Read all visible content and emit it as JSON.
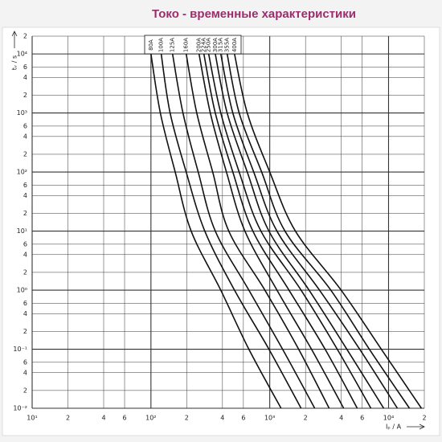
{
  "chart_data": {
    "type": "line",
    "title": "Токо - временные характеристики",
    "xlabel": "Iₚ / A",
    "ylabel": "tᵥ / s",
    "xscale": "log",
    "yscale": "log",
    "grid": true,
    "xlim": [
      10,
      20000
    ],
    "ylim": [
      0.01,
      20000
    ],
    "xticks": [
      {
        "value": 10,
        "label": "10¹"
      },
      {
        "value": 20,
        "label": "2"
      },
      {
        "value": 40,
        "label": "4"
      },
      {
        "value": 60,
        "label": "6"
      },
      {
        "value": 100,
        "label": "10²"
      },
      {
        "value": 200,
        "label": "2"
      },
      {
        "value": 400,
        "label": "4"
      },
      {
        "value": 600,
        "label": "6"
      },
      {
        "value": 1000,
        "label": "10³"
      },
      {
        "value": 2000,
        "label": "2"
      },
      {
        "value": 4000,
        "label": "4"
      },
      {
        "value": 6000,
        "label": "6"
      },
      {
        "value": 10000,
        "label": "10⁴"
      },
      {
        "value": 20000,
        "label": "2"
      }
    ],
    "yticks": [
      {
        "value": 0.01,
        "label": "10⁻²"
      },
      {
        "value": 0.02,
        "label": "2"
      },
      {
        "value": 0.04,
        "label": "4"
      },
      {
        "value": 0.06,
        "label": "6"
      },
      {
        "value": 0.1,
        "label": "10⁻¹"
      },
      {
        "value": 0.2,
        "label": "2"
      },
      {
        "value": 0.4,
        "label": "4"
      },
      {
        "value": 0.6,
        "label": "6"
      },
      {
        "value": 1,
        "label": "10⁰"
      },
      2,
      4,
      6,
      {
        "value": 10,
        "label": "10¹"
      },
      {
        "value": 20,
        "label": "2"
      },
      {
        "value": 40,
        "label": "4"
      },
      {
        "value": 60,
        "label": "6"
      },
      {
        "value": 100,
        "label": "10²"
      },
      {
        "value": 200,
        "label": "2"
      },
      {
        "value": 400,
        "label": "4"
      },
      {
        "value": 600,
        "label": "6"
      },
      {
        "value": 1000,
        "label": "10³"
      },
      {
        "value": 2000,
        "label": "2"
      },
      {
        "value": 4000,
        "label": "4"
      },
      {
        "value": 6000,
        "label": "6"
      },
      {
        "value": 10000,
        "label": "10⁴"
      },
      {
        "value": 20000,
        "label": "2"
      }
    ],
    "series": [
      {
        "name": "80A",
        "color": "#111111",
        "x": [
          100,
          120,
          160,
          218,
          387,
          667,
          1245
        ],
        "values": [
          10000,
          1000,
          100,
          10,
          1,
          0.1,
          0.01
        ]
      },
      {
        "name": "100A",
        "color": "#111111",
        "x": [
          122,
          145,
          198,
          284,
          505,
          984,
          1835
        ],
        "values": [
          10000,
          1000,
          100,
          10,
          1,
          0.1,
          0.01
        ]
      },
      {
        "name": "125A",
        "color": "#111111",
        "x": [
          152,
          186,
          250,
          348,
          667,
          1282,
          2390
        ],
        "values": [
          10000,
          1000,
          100,
          10,
          1,
          0.1,
          0.01
        ]
      },
      {
        "name": "160A",
        "color": "#111111",
        "x": [
          198,
          243,
          331,
          452,
          910,
          1750,
          3162
        ],
        "values": [
          10000,
          1000,
          100,
          10,
          1,
          0.1,
          0.01
        ]
      },
      {
        "name": "200A",
        "color": "#111111",
        "x": [
          254,
          316,
          432,
          618,
          1150,
          2245,
          4190
        ],
        "values": [
          10000,
          1000,
          100,
          10,
          1,
          0.1,
          0.01
        ]
      },
      {
        "name": "224A",
        "color": "#111111",
        "x": [
          279,
          348,
          489,
          721,
          1452,
          2924,
          5450
        ],
        "values": [
          10000,
          1000,
          100,
          10,
          1,
          0.1,
          0.01
        ]
      },
      {
        "name": "250A",
        "color": "#111111",
        "x": [
          306,
          387,
          553,
          843,
          1835,
          3698,
          7100
        ],
        "values": [
          10000,
          1000,
          100,
          10,
          1,
          0.1,
          0.01
        ]
      },
      {
        "name": "300A",
        "color": "#111111",
        "x": [
          348,
          438,
          647,
          984,
          2143,
          4455,
          9100
        ],
        "values": [
          10000,
          1000,
          100,
          10,
          1,
          0.1,
          0.01
        ]
      },
      {
        "name": "315A",
        "color": "#111111",
        "x": [
          387,
          489,
          733,
          1150,
          2624,
          5715,
          11860
        ],
        "values": [
          10000,
          1000,
          100,
          10,
          1,
          0.1,
          0.01
        ]
      },
      {
        "name": "355A",
        "color": "#111111",
        "x": [
          438,
          553,
          855,
          1343,
          3266,
          6890,
          15000
        ],
        "values": [
          10000,
          1000,
          100,
          10,
          1,
          0.1,
          0.01
        ]
      },
      {
        "name": "400A",
        "color": "#111111",
        "x": [
          505,
          647,
          1000,
          1644,
          3990,
          8690,
          18900
        ],
        "values": [
          10000,
          1000,
          100,
          10,
          1,
          0.1,
          0.01
        ]
      }
    ]
  }
}
